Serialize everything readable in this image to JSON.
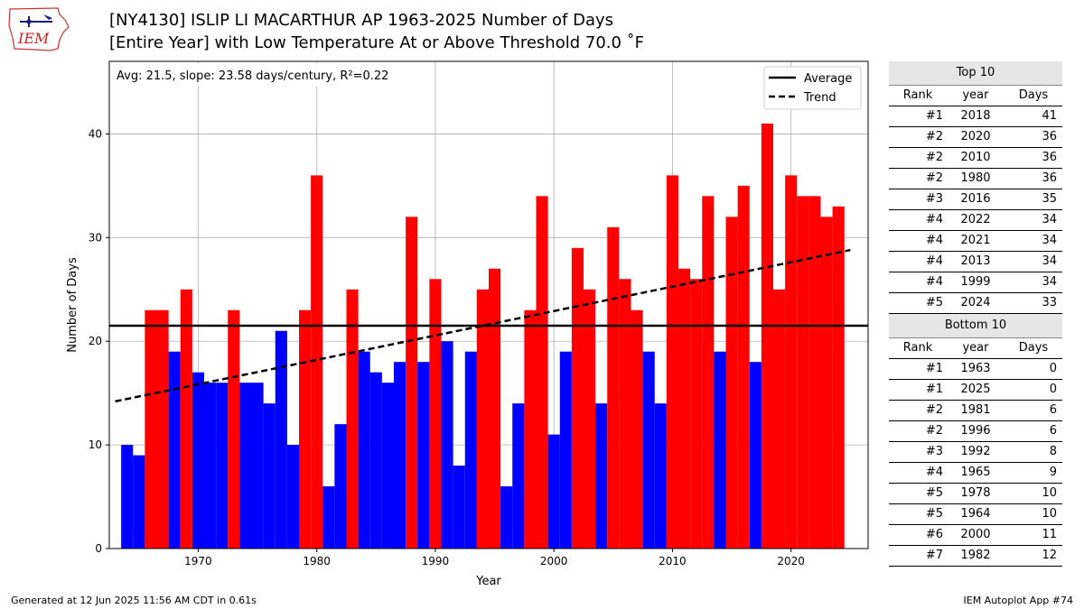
{
  "logo_text": "IEM",
  "title": {
    "line1": "[NY4130] ISLIP LI MACARTHUR AP 1963-2025 Number of Days",
    "line2": "[Entire Year] with Low Temperature At or Above Threshold 70.0 ˚F"
  },
  "stats_text": "Avg: 21.5, slope: 23.58 days/century, R²=0.22",
  "legend": {
    "average": "Average",
    "trend": "Trend"
  },
  "colors": {
    "above": "#ff0000",
    "below": "#0000ff",
    "line": "#000000"
  },
  "chart_data": {
    "type": "bar",
    "xlabel": "Year",
    "ylabel": "Number of Days",
    "xlim": [
      1962.5,
      2026.5
    ],
    "ylim": [
      0,
      47
    ],
    "xticks": [
      1970,
      1980,
      1990,
      2000,
      2010,
      2020
    ],
    "yticks": [
      0,
      10,
      20,
      30,
      40
    ],
    "grid": true,
    "legend_position": "top-right",
    "average": 21.5,
    "trend": {
      "start": [
        1963,
        14.2
      ],
      "end": [
        2025,
        28.8
      ]
    },
    "x": [
      1963,
      1964,
      1965,
      1966,
      1967,
      1968,
      1969,
      1970,
      1971,
      1972,
      1973,
      1974,
      1975,
      1976,
      1977,
      1978,
      1979,
      1980,
      1981,
      1982,
      1983,
      1984,
      1985,
      1986,
      1987,
      1988,
      1989,
      1990,
      1991,
      1992,
      1993,
      1994,
      1995,
      1996,
      1997,
      1998,
      1999,
      2000,
      2001,
      2002,
      2003,
      2004,
      2005,
      2006,
      2007,
      2008,
      2009,
      2010,
      2011,
      2012,
      2013,
      2014,
      2015,
      2016,
      2017,
      2018,
      2019,
      2020,
      2021,
      2022,
      2023,
      2024,
      2025
    ],
    "values": [
      0,
      10,
      9,
      23,
      23,
      19,
      25,
      17,
      16,
      16,
      23,
      16,
      16,
      14,
      21,
      10,
      23,
      36,
      6,
      12,
      25,
      19,
      17,
      16,
      18,
      32,
      18,
      26,
      20,
      8,
      19,
      25,
      27,
      6,
      14,
      23,
      34,
      11,
      19,
      29,
      25,
      14,
      31,
      26,
      23,
      19,
      14,
      36,
      27,
      26,
      34,
      19,
      32,
      35,
      18,
      41,
      25,
      36,
      34,
      34,
      32,
      33,
      0
    ]
  },
  "table": {
    "top_title": "Top 10",
    "bottom_title": "Bottom 10",
    "columns": [
      "Rank",
      "year",
      "Days"
    ],
    "top": [
      [
        "#1",
        "2018",
        "41"
      ],
      [
        "#2",
        "2020",
        "36"
      ],
      [
        "#2",
        "2010",
        "36"
      ],
      [
        "#2",
        "1980",
        "36"
      ],
      [
        "#3",
        "2016",
        "35"
      ],
      [
        "#4",
        "2022",
        "34"
      ],
      [
        "#4",
        "2021",
        "34"
      ],
      [
        "#4",
        "2013",
        "34"
      ],
      [
        "#4",
        "1999",
        "34"
      ],
      [
        "#5",
        "2024",
        "33"
      ]
    ],
    "bottom": [
      [
        "#1",
        "1963",
        "0"
      ],
      [
        "#1",
        "2025",
        "0"
      ],
      [
        "#2",
        "1981",
        "6"
      ],
      [
        "#2",
        "1996",
        "6"
      ],
      [
        "#3",
        "1992",
        "8"
      ],
      [
        "#4",
        "1965",
        "9"
      ],
      [
        "#5",
        "1978",
        "10"
      ],
      [
        "#5",
        "1964",
        "10"
      ],
      [
        "#6",
        "2000",
        "11"
      ],
      [
        "#7",
        "1982",
        "12"
      ]
    ]
  },
  "footer": {
    "left": "Generated at 12 Jun 2025 11:56 AM CDT in 0.61s",
    "right": "IEM Autoplot App #74"
  }
}
